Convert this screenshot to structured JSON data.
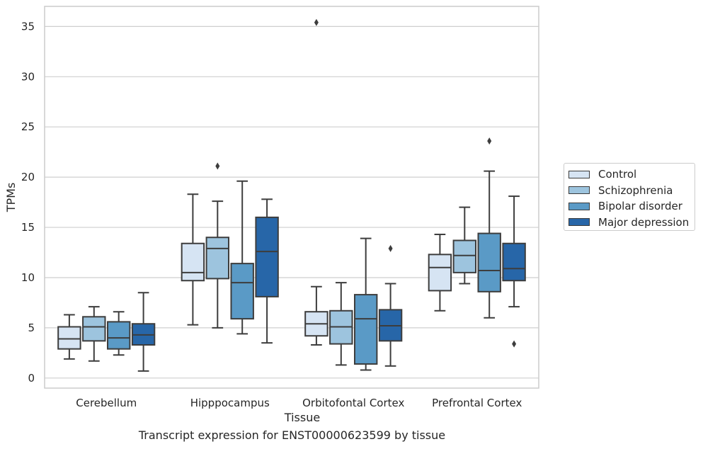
{
  "chart_data": {
    "type": "box",
    "caption": "Transcript expression for ENST00000623599 by tissue",
    "xlabel": "Tissue",
    "ylabel": "TPMs",
    "ylim": [
      -1,
      37
    ],
    "yticks": [
      0,
      5,
      10,
      15,
      20,
      25,
      30,
      35
    ],
    "grid": "horizontal",
    "legend_position": "right",
    "categories": [
      "Cerebellum",
      "Hipppocampus",
      "Orbitofontal Cortex",
      "Prefrontal Cortex"
    ],
    "series": [
      {
        "name": "Control",
        "color": "#d6e4f3",
        "boxes": [
          {
            "whislo": 1.9,
            "q1": 2.9,
            "med": 3.9,
            "q3": 5.1,
            "whishi": 6.3,
            "fliers": []
          },
          {
            "whislo": 5.3,
            "q1": 9.7,
            "med": 10.5,
            "q3": 13.4,
            "whishi": 18.3,
            "fliers": []
          },
          {
            "whislo": 3.3,
            "q1": 4.2,
            "med": 5.4,
            "q3": 6.6,
            "whishi": 9.1,
            "fliers": [
              35.4
            ]
          },
          {
            "whislo": 6.7,
            "q1": 8.7,
            "med": 11.0,
            "q3": 12.3,
            "whishi": 14.3,
            "fliers": []
          }
        ]
      },
      {
        "name": "Schizophrenia",
        "color": "#9dc4de",
        "boxes": [
          {
            "whislo": 1.7,
            "q1": 3.7,
            "med": 5.1,
            "q3": 6.1,
            "whishi": 7.1,
            "fliers": []
          },
          {
            "whislo": 5.0,
            "q1": 9.9,
            "med": 12.9,
            "q3": 14.0,
            "whishi": 17.6,
            "fliers": [
              21.1
            ]
          },
          {
            "whislo": 1.3,
            "q1": 3.4,
            "med": 5.1,
            "q3": 6.7,
            "whishi": 9.5,
            "fliers": []
          },
          {
            "whislo": 9.4,
            "q1": 10.5,
            "med": 12.2,
            "q3": 13.7,
            "whishi": 17.0,
            "fliers": []
          }
        ]
      },
      {
        "name": "Bipolar disorder",
        "color": "#5a9ac6",
        "boxes": [
          {
            "whislo": 2.3,
            "q1": 2.9,
            "med": 4.0,
            "q3": 5.6,
            "whishi": 6.6,
            "fliers": []
          },
          {
            "whislo": 4.4,
            "q1": 5.9,
            "med": 9.5,
            "q3": 11.4,
            "whishi": 19.6,
            "fliers": []
          },
          {
            "whislo": 0.8,
            "q1": 1.4,
            "med": 5.9,
            "q3": 8.3,
            "whishi": 13.9,
            "fliers": []
          },
          {
            "whislo": 6.0,
            "q1": 8.6,
            "med": 10.7,
            "q3": 14.4,
            "whishi": 20.6,
            "fliers": [
              23.6
            ]
          }
        ]
      },
      {
        "name": "Major depression",
        "color": "#2766a8",
        "boxes": [
          {
            "whislo": 0.7,
            "q1": 3.3,
            "med": 4.3,
            "q3": 5.4,
            "whishi": 8.5,
            "fliers": []
          },
          {
            "whislo": 3.5,
            "q1": 8.1,
            "med": 12.6,
            "q3": 16.0,
            "whishi": 17.8,
            "fliers": []
          },
          {
            "whislo": 1.2,
            "q1": 3.7,
            "med": 5.2,
            "q3": 6.8,
            "whishi": 9.4,
            "fliers": [
              12.9
            ]
          },
          {
            "whislo": 7.1,
            "q1": 9.7,
            "med": 10.9,
            "q3": 13.4,
            "whishi": 18.1,
            "fliers": [
              3.4
            ]
          }
        ]
      }
    ]
  }
}
